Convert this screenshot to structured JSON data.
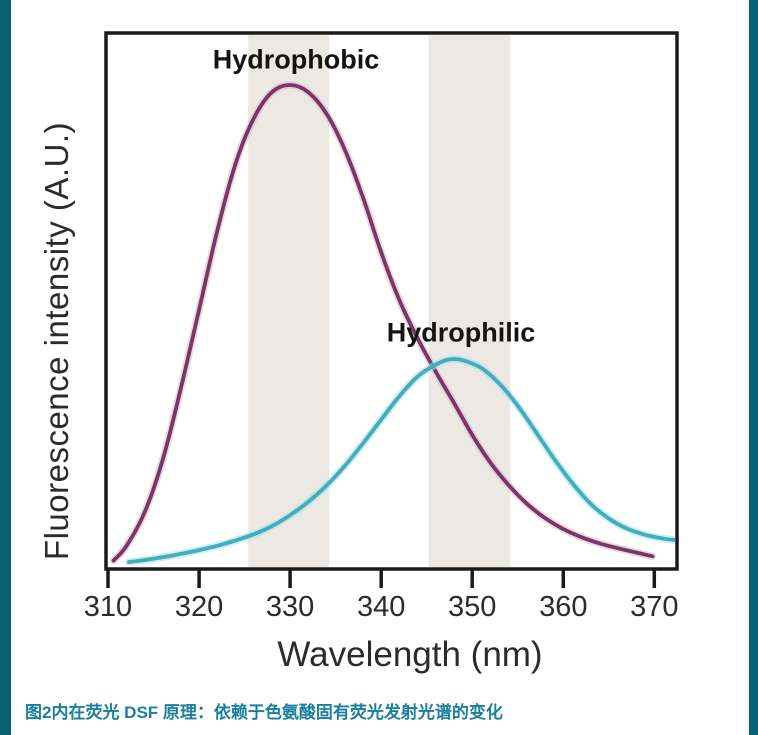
{
  "page": {
    "background_color": "#ffffff",
    "side_strip_color": "#066272"
  },
  "caption": {
    "text": "图2内在荧光 DSF 原理：依赖于色氨酸固有荧光发射光谱的变化",
    "color": "#1a7f9e"
  },
  "chart_data": {
    "type": "line",
    "title": "",
    "xlabel": "Wavelength (nm)",
    "ylabel": "Fluorescence intensity (A.U.)",
    "x_ticks": [
      310,
      320,
      330,
      340,
      350,
      360,
      370
    ],
    "xlim": [
      309.8,
      372.5
    ],
    "ylim": [
      0,
      1.12
    ],
    "grid": false,
    "frame_color": "#1a1a1a",
    "band_color": "#ece9e5",
    "highlight_bands": [
      {
        "from": 325.4,
        "to": 334.3
      },
      {
        "from": 345.2,
        "to": 354.2
      }
    ],
    "series": [
      {
        "name": "Hydrophobic",
        "color": "#7b3566",
        "halo_color": "#d9b8ce",
        "peak_nm": 330,
        "points": [
          [
            310.6,
            0.005
          ],
          [
            312,
            0.035
          ],
          [
            314,
            0.105
          ],
          [
            316,
            0.215
          ],
          [
            318,
            0.365
          ],
          [
            320,
            0.53
          ],
          [
            322,
            0.695
          ],
          [
            324,
            0.835
          ],
          [
            326,
            0.93
          ],
          [
            328,
            0.985
          ],
          [
            330,
            1.0
          ],
          [
            332,
            0.985
          ],
          [
            334,
            0.94
          ],
          [
            336,
            0.865
          ],
          [
            338,
            0.765
          ],
          [
            340,
            0.65
          ],
          [
            342,
            0.55
          ],
          [
            344,
            0.47
          ],
          [
            346,
            0.4
          ],
          [
            348,
            0.335
          ],
          [
            350,
            0.268
          ],
          [
            352,
            0.21
          ],
          [
            354,
            0.163
          ],
          [
            356,
            0.124
          ],
          [
            358,
            0.094
          ],
          [
            360,
            0.071
          ],
          [
            362,
            0.054
          ],
          [
            364,
            0.041
          ],
          [
            366,
            0.031
          ],
          [
            368,
            0.022
          ],
          [
            369.8,
            0.014
          ]
        ]
      },
      {
        "name": "Hydrophilic",
        "color": "#3fafc0",
        "halo_color": "#a9dde3",
        "peak_nm": 347.5,
        "points": [
          [
            312.3,
            0.002
          ],
          [
            314,
            0.006
          ],
          [
            316,
            0.012
          ],
          [
            318,
            0.019
          ],
          [
            320,
            0.027
          ],
          [
            322,
            0.036
          ],
          [
            324,
            0.047
          ],
          [
            326,
            0.06
          ],
          [
            328,
            0.077
          ],
          [
            330,
            0.1
          ],
          [
            332,
            0.128
          ],
          [
            334,
            0.162
          ],
          [
            336,
            0.203
          ],
          [
            338,
            0.25
          ],
          [
            340,
            0.3
          ],
          [
            342,
            0.349
          ],
          [
            344,
            0.39
          ],
          [
            346,
            0.415
          ],
          [
            347.5,
            0.426
          ],
          [
            349,
            0.424
          ],
          [
            351,
            0.408
          ],
          [
            353,
            0.375
          ],
          [
            355,
            0.329
          ],
          [
            357,
            0.274
          ],
          [
            359,
            0.218
          ],
          [
            361,
            0.167
          ],
          [
            363,
            0.124
          ],
          [
            365,
            0.093
          ],
          [
            367,
            0.072
          ],
          [
            369,
            0.059
          ],
          [
            371,
            0.051
          ],
          [
            372.4,
            0.048
          ]
        ]
      }
    ],
    "annotations": [
      {
        "text": "Hydrophobic",
        "x_nm": 330.7,
        "y_norm": 1.05
      },
      {
        "text": "Hydrophilic",
        "x_nm": 348.8,
        "y_norm": 0.48
      }
    ]
  }
}
